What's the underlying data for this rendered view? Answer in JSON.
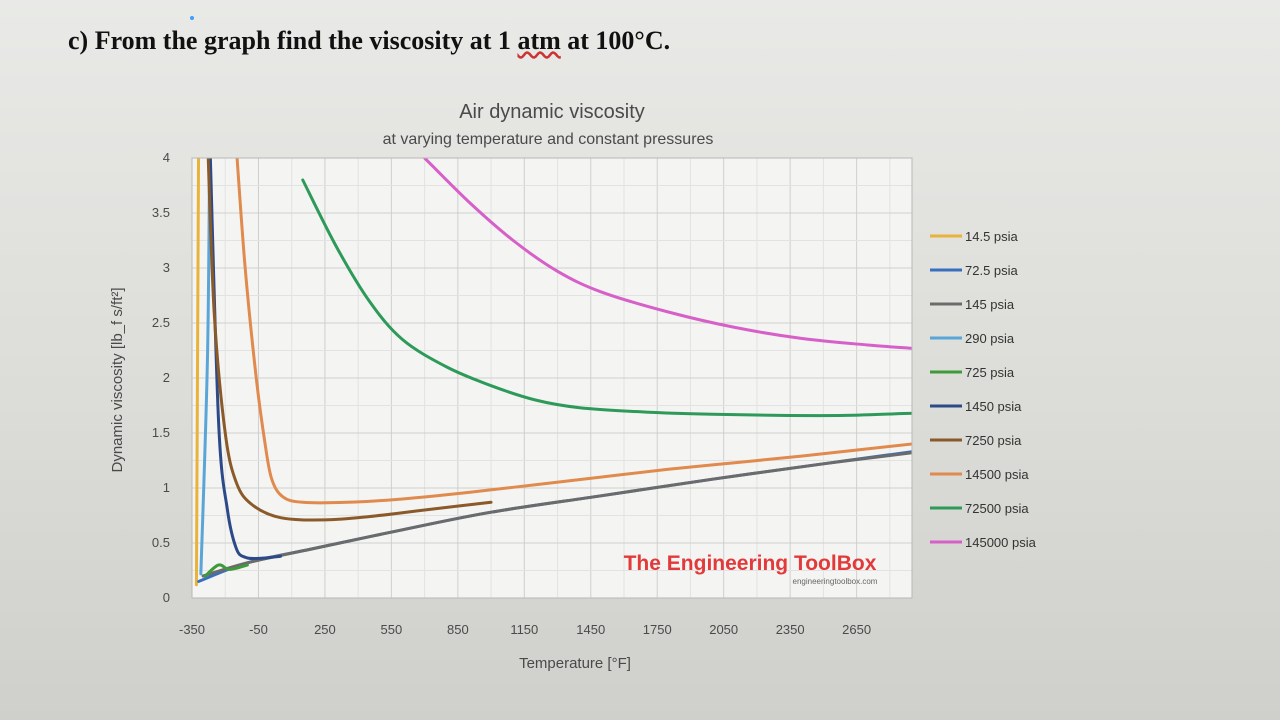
{
  "question": {
    "prefix": "c) From the graph find the viscosity at 1 ",
    "underlined": "atm",
    "suffix": " at 100°C."
  },
  "watermark": {
    "brand": "The Engineering ToolBox",
    "url": "engineeringtoolbox.com"
  },
  "chart_data": {
    "type": "line",
    "title": "Air dynamic viscosity",
    "subtitle": "at varying temperature and constant pressures",
    "xlabel": "Temperature [°F]",
    "ylabel": "Dynamic viscosity [lb_f s/ft²]",
    "xlim": [
      -350,
      2900
    ],
    "ylim": [
      0,
      4
    ],
    "x_ticks": [
      "-350",
      "-50",
      "250",
      "550",
      "850",
      "1150",
      "1450",
      "1750",
      "2050",
      "2350",
      "2650"
    ],
    "y_ticks": [
      "0",
      "0.5",
      "1",
      "1.5",
      "2",
      "2.5",
      "3",
      "3.5",
      "4"
    ],
    "grid": true,
    "legend_position": "right",
    "series": [
      {
        "name": "14.5 psia",
        "color": "#e8b33a",
        "points": [
          [
            -330,
            0.12
          ],
          [
            -320,
            4.2
          ]
        ]
      },
      {
        "name": "72.5 psia",
        "color": "#3a6fbf",
        "points": [
          [
            -320,
            0.15
          ],
          [
            -100,
            0.32
          ],
          [
            200,
            0.45
          ],
          [
            600,
            0.62
          ],
          [
            1000,
            0.78
          ],
          [
            1500,
            0.93
          ],
          [
            2000,
            1.08
          ],
          [
            2500,
            1.22
          ],
          [
            2900,
            1.33
          ]
        ]
      },
      {
        "name": "145 psia",
        "color": "#6b6b6b",
        "points": [
          [
            -300,
            0.2
          ],
          [
            -100,
            0.32
          ],
          [
            200,
            0.45
          ],
          [
            600,
            0.62
          ],
          [
            1000,
            0.78
          ],
          [
            1500,
            0.93
          ],
          [
            2000,
            1.08
          ],
          [
            2500,
            1.22
          ],
          [
            2900,
            1.32
          ]
        ]
      },
      {
        "name": "290 psia",
        "color": "#5aa5d8",
        "points": [
          [
            -310,
            0.22
          ],
          [
            -280,
            2.2
          ],
          [
            -270,
            4.2
          ]
        ]
      },
      {
        "name": "725 psia",
        "color": "#3f9a3a",
        "points": [
          [
            -290,
            0.2
          ],
          [
            -230,
            0.3
          ],
          [
            -180,
            0.26
          ],
          [
            -100,
            0.3
          ]
        ]
      },
      {
        "name": "1450 psia",
        "color": "#2d4a88",
        "points": [
          [
            -270,
            4.2
          ],
          [
            -230,
            1.6
          ],
          [
            -190,
            0.8
          ],
          [
            -150,
            0.45
          ],
          [
            -110,
            0.37
          ],
          [
            -50,
            0.36
          ],
          [
            50,
            0.38
          ]
        ]
      },
      {
        "name": "7250 psia",
        "color": "#8a5a2a",
        "points": [
          [
            -280,
            4.2
          ],
          [
            -250,
            2.6
          ],
          [
            -200,
            1.5
          ],
          [
            -150,
            1.05
          ],
          [
            -80,
            0.85
          ],
          [
            50,
            0.73
          ],
          [
            250,
            0.71
          ],
          [
            450,
            0.74
          ],
          [
            700,
            0.8
          ],
          [
            1000,
            0.87
          ]
        ]
      },
      {
        "name": "14500 psia",
        "color": "#e08a4e",
        "points": [
          [
            -150,
            4.1
          ],
          [
            -110,
            3.0
          ],
          [
            -60,
            2.0
          ],
          [
            -20,
            1.4
          ],
          [
            10,
            1.08
          ],
          [
            60,
            0.92
          ],
          [
            150,
            0.87
          ],
          [
            350,
            0.87
          ],
          [
            600,
            0.9
          ],
          [
            900,
            0.96
          ],
          [
            1200,
            1.03
          ],
          [
            1500,
            1.1
          ],
          [
            1800,
            1.17
          ],
          [
            2100,
            1.23
          ],
          [
            2400,
            1.29
          ],
          [
            2900,
            1.4
          ]
        ]
      },
      {
        "name": "72500 psia",
        "color": "#2e9a5a",
        "points": [
          [
            150,
            3.8
          ],
          [
            300,
            3.2
          ],
          [
            450,
            2.7
          ],
          [
            600,
            2.35
          ],
          [
            800,
            2.1
          ],
          [
            1000,
            1.93
          ],
          [
            1200,
            1.8
          ],
          [
            1400,
            1.73
          ],
          [
            1700,
            1.69
          ],
          [
            2000,
            1.67
          ],
          [
            2300,
            1.66
          ],
          [
            2600,
            1.66
          ],
          [
            2900,
            1.68
          ]
        ]
      },
      {
        "name": "145000 psia",
        "color": "#d660c8",
        "points": [
          [
            700,
            4.0
          ],
          [
            900,
            3.6
          ],
          [
            1100,
            3.25
          ],
          [
            1300,
            2.97
          ],
          [
            1500,
            2.78
          ],
          [
            1800,
            2.6
          ],
          [
            2100,
            2.46
          ],
          [
            2400,
            2.36
          ],
          [
            2700,
            2.3
          ],
          [
            2900,
            2.27
          ]
        ]
      }
    ]
  }
}
